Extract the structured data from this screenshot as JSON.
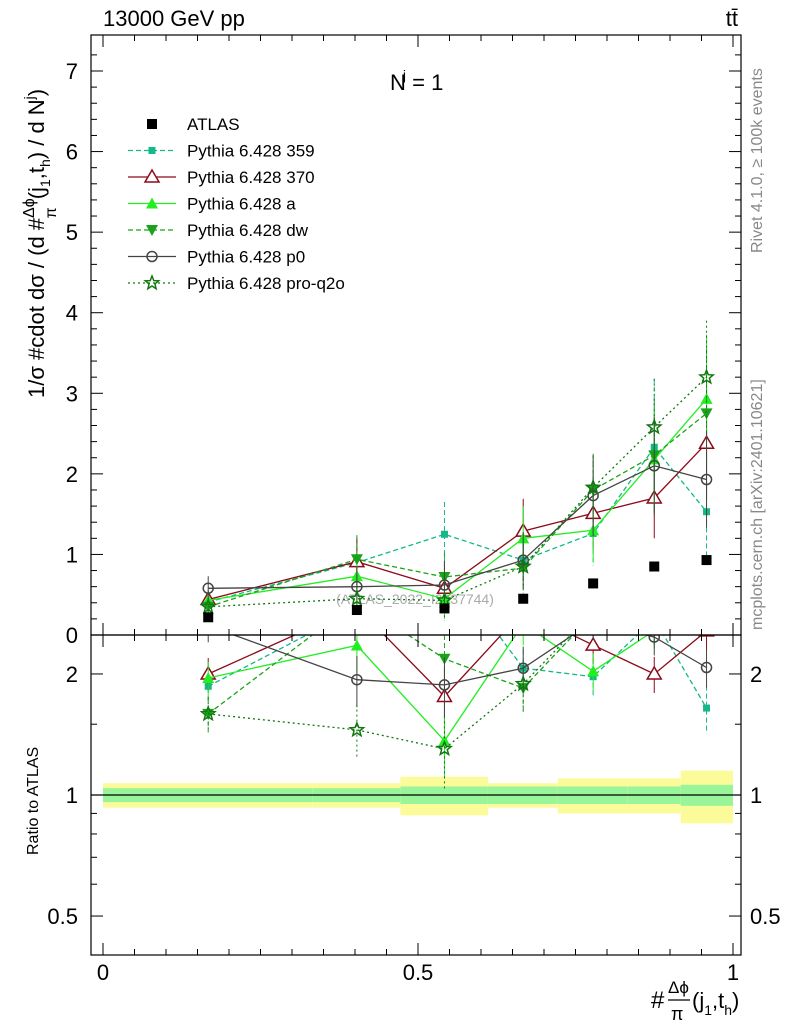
{
  "header": {
    "energy_label": "13000 GeV pp",
    "process_label": "tt̄"
  },
  "side_labels": {
    "rivet": "Rivet 4.1.0, ≥ 100k events",
    "mcplots": "mcplots.cern.ch [arXiv:2401.10621]"
  },
  "watermark": "(ATLAS_2022_I2037744)",
  "annotation": {
    "base": "N",
    "sup": "j",
    "rest": " = 1"
  },
  "axes": {
    "y_label_top": "1/σ #cdot dσ / (d #",
    "y_label_frac_num": "Δϕ",
    "y_label_frac_den": "π",
    "y_label_tail": "(j",
    "y_label_sub1": "1",
    "y_label_comma": ",t",
    "y_label_sub2": "h",
    "y_label_end": ") / d N",
    "y_label_sup": "j",
    "y_label_close": ")",
    "ratio_label": "Ratio to ATLAS",
    "x_label_hash": "#",
    "x_label_num": "Δϕ",
    "x_label_den": "π",
    "x_label_open": "(j",
    "x_label_sub1": "1",
    "x_label_comma": ",t",
    "x_label_sub2": "h",
    "x_label_close": ")",
    "main_y_ticks": [
      "0",
      "1",
      "2",
      "3",
      "4",
      "5",
      "6",
      "7"
    ],
    "x_ticks": [
      "0",
      "0.5",
      "1"
    ],
    "ratio_y_ticks_left": [
      "0.5",
      "1",
      "2"
    ],
    "ratio_y_ticks_right": [
      "0.5",
      "1",
      "2"
    ]
  },
  "colors": {
    "atlas": "#000000",
    "p359": "#14b88a",
    "p370": "#8b0b1a",
    "pa": "#22ee22",
    "pdw": "#19a319",
    "pp0": "#444444",
    "pq2o": "#117711",
    "band_inner": "#99f599",
    "band_outer": "#fbfb99"
  },
  "chart_data": {
    "type": "line",
    "title": "N^j = 1",
    "xlabel": "#Δϕ/π(j1,th)",
    "ylabel": "1/σ #cdot dσ / (d #Δϕ/π(j1,th) / d N^j)",
    "xlim": [
      0,
      1
    ],
    "ylim": [
      0,
      7.45
    ],
    "ratio_ylim": [
      0.4,
      2.5
    ],
    "ratio_ylabel": "Ratio to ATLAS",
    "bin_edges": [
      0,
      0.333,
      0.472,
      0.611,
      0.722,
      0.833,
      0.917,
      1.0
    ],
    "x": [
      0.167,
      0.403,
      0.542,
      0.667,
      0.778,
      0.875,
      0.958
    ],
    "reference": {
      "name": "ATLAS",
      "values": [
        0.22,
        0.31,
        0.33,
        0.45,
        0.64,
        0.85,
        0.93
      ],
      "band_inner": [
        0.04,
        0.04,
        0.05,
        0.05,
        0.05,
        0.05,
        0.06
      ],
      "band_outer": [
        0.07,
        0.07,
        0.11,
        0.07,
        0.1,
        0.1,
        0.15
      ]
    },
    "series": [
      {
        "name": "Pythia 6.428 359",
        "values": [
          0.41,
          0.9,
          1.25,
          0.93,
          1.26,
          2.33,
          1.53
        ],
        "errors": [
          0.1,
          0.3,
          0.4,
          0.3,
          0.4,
          0.85,
          0.6
        ]
      },
      {
        "name": "Pythia 6.428 370",
        "values": [
          0.44,
          0.91,
          0.58,
          1.29,
          1.51,
          1.7,
          2.38
        ],
        "errors": [
          0.12,
          0.3,
          0.3,
          0.4,
          0.45,
          0.5,
          0.7
        ]
      },
      {
        "name": "Pythia 6.428 a",
        "values": [
          0.43,
          0.73,
          0.45,
          1.2,
          1.3,
          2.18,
          2.93
        ],
        "errors": [
          0.12,
          0.3,
          0.25,
          0.4,
          0.4,
          0.6,
          0.8
        ]
      },
      {
        "name": "Pythia 6.428 dw",
        "values": [
          0.35,
          0.94,
          0.72,
          0.83,
          1.8,
          2.23,
          2.75
        ],
        "errors": [
          0.1,
          0.3,
          0.3,
          0.3,
          0.45,
          0.7,
          0.8
        ]
      },
      {
        "name": "Pythia 6.428 p0",
        "values": [
          0.58,
          0.6,
          0.62,
          0.93,
          1.73,
          2.1,
          1.93
        ],
        "errors": [
          0.15,
          0.25,
          0.3,
          0.35,
          0.5,
          0.6,
          0.6
        ]
      },
      {
        "name": "Pythia 6.428 pro-q2o",
        "values": [
          0.35,
          0.45,
          0.43,
          0.85,
          1.83,
          2.58,
          3.2
        ],
        "errors": [
          0.1,
          0.2,
          0.25,
          0.35,
          0.4,
          0.6,
          0.7
        ]
      }
    ]
  }
}
